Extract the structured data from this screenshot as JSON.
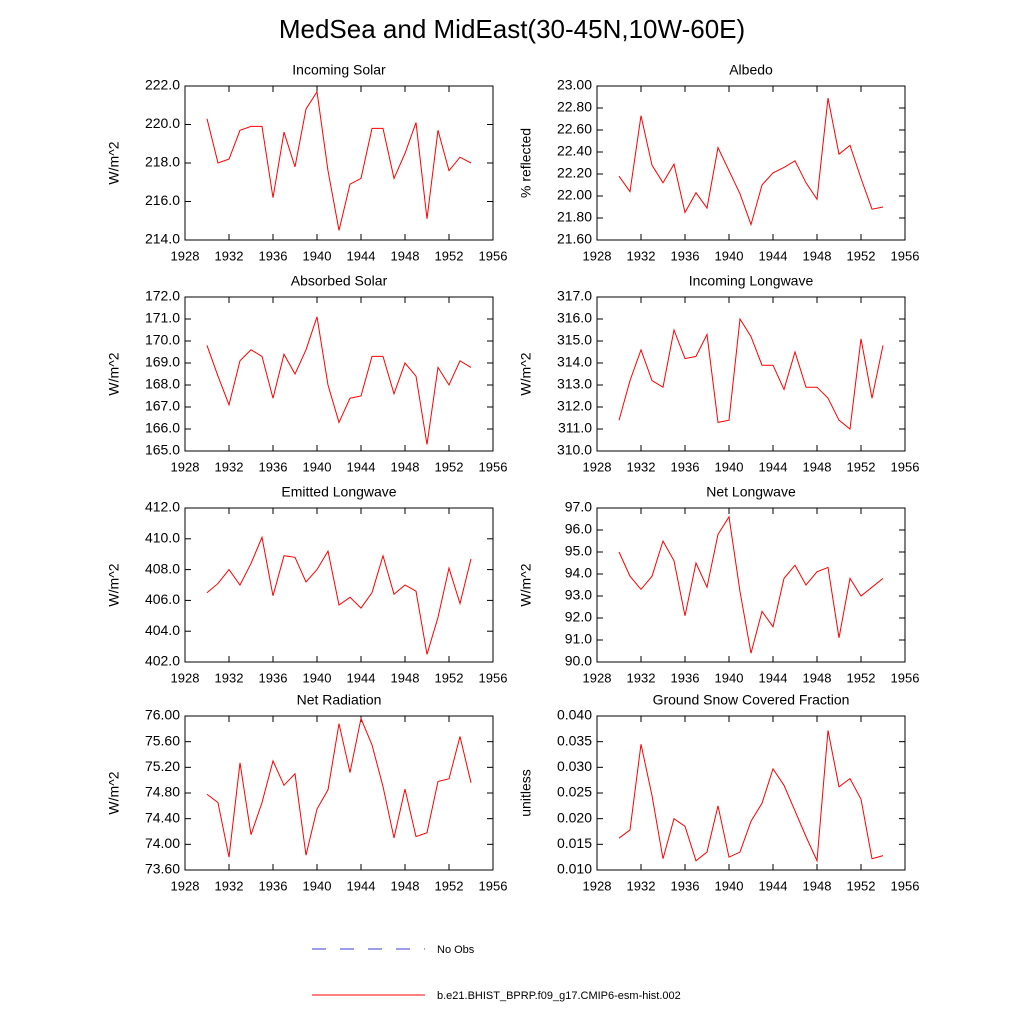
{
  "title": "MedSea and MidEast(30-45N,10W-60E)",
  "no_obs": {
    "name": "No Obs",
    "color": "#3b3bd6"
  },
  "chart_data": [
    {
      "type": "line",
      "title": "Incoming Solar",
      "ylabel": "W/m^2",
      "x": [
        1930,
        1931,
        1932,
        1933,
        1934,
        1935,
        1936,
        1937,
        1938,
        1939,
        1940,
        1941,
        1942,
        1943,
        1944,
        1945,
        1946,
        1947,
        1948,
        1949,
        1950,
        1951,
        1952,
        1953,
        1954
      ],
      "series": [
        {
          "name": "b.e21.BHIST_BPRP.f09_g17.CMIP6-esm-hist.002",
          "color": "#ff0000",
          "values": [
            220.3,
            218.0,
            218.2,
            219.7,
            219.9,
            219.9,
            216.2,
            219.6,
            217.8,
            220.8,
            221.7,
            217.6,
            214.5,
            216.9,
            217.2,
            219.8,
            219.8,
            217.2,
            218.5,
            220.1,
            215.1,
            219.7,
            217.6,
            218.3,
            218.0
          ]
        }
      ],
      "xlim": [
        1928,
        1956
      ],
      "xticks": [
        1928,
        1932,
        1936,
        1940,
        1944,
        1948,
        1952,
        1956
      ],
      "ylim": [
        214,
        222
      ],
      "yticks": [
        {
          "value": 214,
          "label": "214.0"
        },
        {
          "value": 216,
          "label": "216.0"
        },
        {
          "value": 218,
          "label": "218.0"
        },
        {
          "value": 220,
          "label": "220.0"
        },
        {
          "value": 222,
          "label": "222.0"
        }
      ]
    },
    {
      "type": "line",
      "title": "Albedo",
      "ylabel": "% reflected",
      "x": [
        1930,
        1931,
        1932,
        1933,
        1934,
        1935,
        1936,
        1937,
        1938,
        1939,
        1940,
        1941,
        1942,
        1943,
        1944,
        1945,
        1946,
        1947,
        1948,
        1949,
        1950,
        1951,
        1952,
        1953,
        1954
      ],
      "series": [
        {
          "name": "b.e21.BHIST_BPRP.f09_g17.CMIP6-esm-hist.002",
          "color": "#ff0000",
          "values": [
            22.18,
            22.04,
            22.73,
            22.28,
            22.12,
            22.29,
            21.85,
            22.03,
            21.89,
            22.44,
            22.23,
            22.02,
            21.74,
            22.1,
            22.21,
            22.26,
            22.32,
            22.12,
            21.97,
            22.89,
            22.38,
            22.46,
            22.16,
            21.88,
            21.9
          ]
        }
      ],
      "xlim": [
        1928,
        1956
      ],
      "xticks": [
        1928,
        1932,
        1936,
        1940,
        1944,
        1948,
        1952,
        1956
      ],
      "ylim": [
        21.6,
        23.0
      ],
      "yticks": [
        {
          "value": 21.6,
          "label": "21.60"
        },
        {
          "value": 21.8,
          "label": "21.80"
        },
        {
          "value": 22.0,
          "label": "22.00"
        },
        {
          "value": 22.2,
          "label": "22.20"
        },
        {
          "value": 22.4,
          "label": "22.40"
        },
        {
          "value": 22.6,
          "label": "22.60"
        },
        {
          "value": 22.8,
          "label": "22.80"
        },
        {
          "value": 23.0,
          "label": "23.00"
        }
      ]
    },
    {
      "type": "line",
      "title": "Absorbed Solar",
      "ylabel": "W/m^2",
      "x": [
        1930,
        1931,
        1932,
        1933,
        1934,
        1935,
        1936,
        1937,
        1938,
        1939,
        1940,
        1941,
        1942,
        1943,
        1944,
        1945,
        1946,
        1947,
        1948,
        1949,
        1950,
        1951,
        1952,
        1953,
        1954
      ],
      "series": [
        {
          "name": "b.e21.BHIST_BPRP.f09_g17.CMIP6-esm-hist.002",
          "color": "#ff0000",
          "values": [
            169.8,
            168.4,
            167.1,
            169.1,
            169.6,
            169.3,
            167.4,
            169.4,
            168.5,
            169.6,
            171.1,
            168.0,
            166.3,
            167.4,
            167.5,
            169.3,
            169.3,
            167.6,
            169.0,
            168.4,
            165.3,
            168.8,
            168.0,
            169.1,
            168.8
          ]
        }
      ],
      "xlim": [
        1928,
        1956
      ],
      "xticks": [
        1928,
        1932,
        1936,
        1940,
        1944,
        1948,
        1952,
        1956
      ],
      "ylim": [
        165,
        172
      ],
      "yticks": [
        {
          "value": 165,
          "label": "165.0"
        },
        {
          "value": 166,
          "label": "166.0"
        },
        {
          "value": 167,
          "label": "167.0"
        },
        {
          "value": 168,
          "label": "168.0"
        },
        {
          "value": 169,
          "label": "169.0"
        },
        {
          "value": 170,
          "label": "170.0"
        },
        {
          "value": 171,
          "label": "171.0"
        },
        {
          "value": 172,
          "label": "172.0"
        }
      ]
    },
    {
      "type": "line",
      "title": "Incoming Longwave",
      "ylabel": "W/m^2",
      "x": [
        1930,
        1931,
        1932,
        1933,
        1934,
        1935,
        1936,
        1937,
        1938,
        1939,
        1940,
        1941,
        1942,
        1943,
        1944,
        1945,
        1946,
        1947,
        1948,
        1949,
        1950,
        1951,
        1952,
        1953,
        1954
      ],
      "series": [
        {
          "name": "b.e21.BHIST_BPRP.f09_g17.CMIP6-esm-hist.002",
          "color": "#ff0000",
          "values": [
            311.4,
            313.2,
            314.6,
            313.2,
            312.9,
            315.5,
            314.2,
            314.3,
            315.3,
            311.3,
            311.4,
            316.0,
            315.2,
            313.9,
            313.9,
            312.8,
            314.5,
            312.9,
            312.9,
            312.4,
            311.4,
            311.0,
            315.1,
            312.4,
            314.8
          ]
        }
      ],
      "xlim": [
        1928,
        1956
      ],
      "xticks": [
        1928,
        1932,
        1936,
        1940,
        1944,
        1948,
        1952,
        1956
      ],
      "ylim": [
        310,
        317
      ],
      "yticks": [
        {
          "value": 310,
          "label": "310.0"
        },
        {
          "value": 311,
          "label": "311.0"
        },
        {
          "value": 312,
          "label": "312.0"
        },
        {
          "value": 313,
          "label": "313.0"
        },
        {
          "value": 314,
          "label": "314.0"
        },
        {
          "value": 315,
          "label": "315.0"
        },
        {
          "value": 316,
          "label": "316.0"
        },
        {
          "value": 317,
          "label": "317.0"
        }
      ]
    },
    {
      "type": "line",
      "title": "Emitted Longwave",
      "ylabel": "W/m^2",
      "x": [
        1930,
        1931,
        1932,
        1933,
        1934,
        1935,
        1936,
        1937,
        1938,
        1939,
        1940,
        1941,
        1942,
        1943,
        1944,
        1945,
        1946,
        1947,
        1948,
        1949,
        1950,
        1951,
        1952,
        1953,
        1954
      ],
      "series": [
        {
          "name": "b.e21.BHIST_BPRP.f09_g17.CMIP6-esm-hist.002",
          "color": "#ff0000",
          "values": [
            406.5,
            407.1,
            408.0,
            407.0,
            408.4,
            410.1,
            406.3,
            408.9,
            408.8,
            407.2,
            408.0,
            409.2,
            405.7,
            406.2,
            405.5,
            406.5,
            408.9,
            406.4,
            407.0,
            406.6,
            402.5,
            404.9,
            408.1,
            405.8,
            408.7
          ]
        }
      ],
      "xlim": [
        1928,
        1956
      ],
      "xticks": [
        1928,
        1932,
        1936,
        1940,
        1944,
        1948,
        1952,
        1956
      ],
      "ylim": [
        402,
        412
      ],
      "yticks": [
        {
          "value": 402,
          "label": "402.0"
        },
        {
          "value": 404,
          "label": "404.0"
        },
        {
          "value": 406,
          "label": "406.0"
        },
        {
          "value": 408,
          "label": "408.0"
        },
        {
          "value": 410,
          "label": "410.0"
        },
        {
          "value": 412,
          "label": "412.0"
        }
      ]
    },
    {
      "type": "line",
      "title": "Net Longwave",
      "ylabel": "W/m^2",
      "x": [
        1930,
        1931,
        1932,
        1933,
        1934,
        1935,
        1936,
        1937,
        1938,
        1939,
        1940,
        1941,
        1942,
        1943,
        1944,
        1945,
        1946,
        1947,
        1948,
        1949,
        1950,
        1951,
        1952,
        1953,
        1954
      ],
      "series": [
        {
          "name": "b.e21.BHIST_BPRP.f09_g17.CMIP6-esm-hist.002",
          "color": "#ff0000",
          "values": [
            95.0,
            93.9,
            93.3,
            93.9,
            95.5,
            94.6,
            92.1,
            94.5,
            93.4,
            95.8,
            96.6,
            93.2,
            90.4,
            92.3,
            91.6,
            93.8,
            94.4,
            93.5,
            94.1,
            94.3,
            91.1,
            93.8,
            93.0,
            93.4,
            93.8
          ]
        }
      ],
      "xlim": [
        1928,
        1956
      ],
      "xticks": [
        1928,
        1932,
        1936,
        1940,
        1944,
        1948,
        1952,
        1956
      ],
      "ylim": [
        90,
        97
      ],
      "yticks": [
        {
          "value": 90,
          "label": "90.0"
        },
        {
          "value": 91,
          "label": "91.0"
        },
        {
          "value": 92,
          "label": "92.0"
        },
        {
          "value": 93,
          "label": "93.0"
        },
        {
          "value": 94,
          "label": "94.0"
        },
        {
          "value": 95,
          "label": "95.0"
        },
        {
          "value": 96,
          "label": "96.0"
        },
        {
          "value": 97,
          "label": "97.0"
        }
      ]
    },
    {
      "type": "line",
      "title": "Net Radiation",
      "ylabel": "W/m^2",
      "x": [
        1930,
        1931,
        1932,
        1933,
        1934,
        1935,
        1936,
        1937,
        1938,
        1939,
        1940,
        1941,
        1942,
        1943,
        1944,
        1945,
        1946,
        1947,
        1948,
        1949,
        1950,
        1951,
        1952,
        1953,
        1954
      ],
      "series": [
        {
          "name": "b.e21.BHIST_BPRP.f09_g17.CMIP6-esm-hist.002",
          "color": "#ff0000",
          "values": [
            74.78,
            74.65,
            73.8,
            75.27,
            74.15,
            74.65,
            75.3,
            74.92,
            75.1,
            73.83,
            74.55,
            74.85,
            75.88,
            75.12,
            75.96,
            75.55,
            74.9,
            74.1,
            74.86,
            74.12,
            74.18,
            74.98,
            75.02,
            75.68,
            74.96
          ]
        }
      ],
      "xlim": [
        1928,
        1956
      ],
      "xticks": [
        1928,
        1932,
        1936,
        1940,
        1944,
        1948,
        1952,
        1956
      ],
      "ylim": [
        73.6,
        76.0
      ],
      "yticks": [
        {
          "value": 73.6,
          "label": "73.60"
        },
        {
          "value": 74.0,
          "label": "74.00"
        },
        {
          "value": 74.4,
          "label": "74.40"
        },
        {
          "value": 74.8,
          "label": "74.80"
        },
        {
          "value": 75.2,
          "label": "75.20"
        },
        {
          "value": 75.6,
          "label": "75.60"
        },
        {
          "value": 76.0,
          "label": "76.00"
        }
      ]
    },
    {
      "type": "line",
      "title": "Ground Snow Covered Fraction",
      "ylabel": "unitless",
      "x": [
        1930,
        1931,
        1932,
        1933,
        1934,
        1935,
        1936,
        1937,
        1938,
        1939,
        1940,
        1941,
        1942,
        1943,
        1944,
        1945,
        1946,
        1947,
        1948,
        1949,
        1950,
        1951,
        1952,
        1953,
        1954
      ],
      "series": [
        {
          "name": "b.e21.BHIST_BPRP.f09_g17.CMIP6-esm-hist.002",
          "color": "#ff0000",
          "values": [
            0.0162,
            0.0178,
            0.0345,
            0.0245,
            0.0122,
            0.02,
            0.0185,
            0.0118,
            0.0135,
            0.0225,
            0.0125,
            0.0135,
            0.0195,
            0.023,
            0.0297,
            0.0265,
            0.0215,
            0.0165,
            0.0118,
            0.0372,
            0.0262,
            0.0278,
            0.0238,
            0.0122,
            0.0128
          ]
        }
      ],
      "xlim": [
        1928,
        1956
      ],
      "xticks": [
        1928,
        1932,
        1936,
        1940,
        1944,
        1948,
        1952,
        1956
      ],
      "ylim": [
        0.01,
        0.04
      ],
      "yticks": [
        {
          "value": 0.01,
          "label": "0.010"
        },
        {
          "value": 0.015,
          "label": "0.015"
        },
        {
          "value": 0.02,
          "label": "0.020"
        },
        {
          "value": 0.025,
          "label": "0.025"
        },
        {
          "value": 0.03,
          "label": "0.030"
        },
        {
          "value": 0.035,
          "label": "0.035"
        },
        {
          "value": 0.04,
          "label": "0.040"
        }
      ]
    }
  ]
}
